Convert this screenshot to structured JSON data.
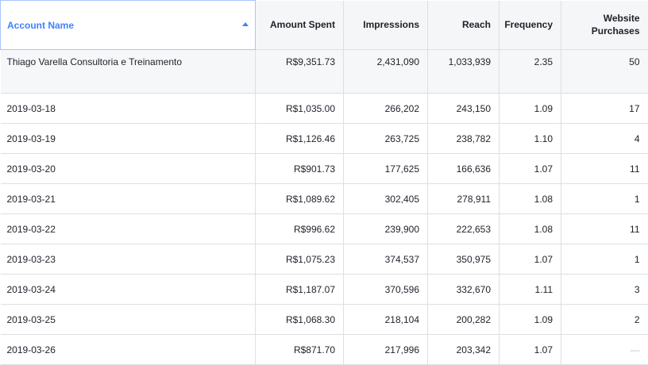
{
  "columns": [
    {
      "label": "Account Name"
    },
    {
      "label": "Amount Spent"
    },
    {
      "label": "Impressions"
    },
    {
      "label": "Reach"
    },
    {
      "label": "Frequency"
    },
    {
      "label": "Website Purchases"
    }
  ],
  "summary": {
    "account_name": "Thiago Varella Consultoria e Treinamento",
    "amount_spent": "R$9,351.73",
    "impressions": "2,431,090",
    "reach": "1,033,939",
    "frequency": "2.35",
    "purchases": "50"
  },
  "rows": [
    {
      "date": "2019-03-18",
      "amount_spent": "R$1,035.00",
      "impressions": "266,202",
      "reach": "243,150",
      "frequency": "1.09",
      "purchases": "17"
    },
    {
      "date": "2019-03-19",
      "amount_spent": "R$1,126.46",
      "impressions": "263,725",
      "reach": "238,782",
      "frequency": "1.10",
      "purchases": "4"
    },
    {
      "date": "2019-03-20",
      "amount_spent": "R$901.73",
      "impressions": "177,625",
      "reach": "166,636",
      "frequency": "1.07",
      "purchases": "11"
    },
    {
      "date": "2019-03-21",
      "amount_spent": "R$1,089.62",
      "impressions": "302,405",
      "reach": "278,911",
      "frequency": "1.08",
      "purchases": "1"
    },
    {
      "date": "2019-03-22",
      "amount_spent": "R$996.62",
      "impressions": "239,900",
      "reach": "222,653",
      "frequency": "1.08",
      "purchases": "11"
    },
    {
      "date": "2019-03-23",
      "amount_spent": "R$1,075.23",
      "impressions": "374,537",
      "reach": "350,975",
      "frequency": "1.07",
      "purchases": "1"
    },
    {
      "date": "2019-03-24",
      "amount_spent": "R$1,187.07",
      "impressions": "370,596",
      "reach": "332,670",
      "frequency": "1.11",
      "purchases": "3"
    },
    {
      "date": "2019-03-25",
      "amount_spent": "R$1,068.30",
      "impressions": "218,104",
      "reach": "200,282",
      "frequency": "1.09",
      "purchases": "2"
    },
    {
      "date": "2019-03-26",
      "amount_spent": "R$871.70",
      "impressions": "217,996",
      "reach": "203,342",
      "frequency": "1.07",
      "purchases": "—"
    }
  ],
  "colors": {
    "accent": "#4080ff",
    "header_bg": "#f5f6f7",
    "border": "#dddfe2"
  },
  "icons": {
    "sort": "sort-ascending-icon"
  }
}
